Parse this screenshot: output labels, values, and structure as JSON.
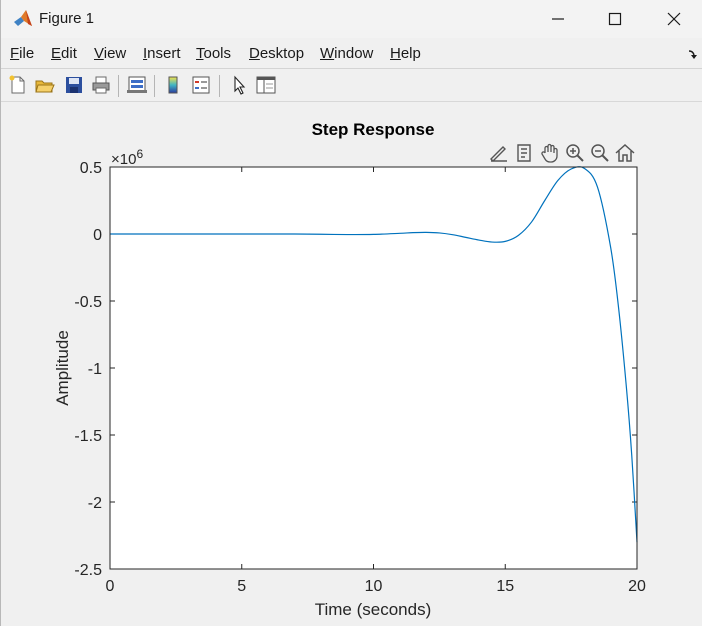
{
  "window": {
    "title": "Figure 1",
    "controls": {
      "minimize_icon": "minimize-icon",
      "maximize_icon": "maximize-icon",
      "close_icon": "close-icon"
    }
  },
  "menu": {
    "items": [
      {
        "label": "File",
        "accel": "F",
        "rest": "ile"
      },
      {
        "label": "Edit",
        "accel": "E",
        "rest": "dit"
      },
      {
        "label": "View",
        "accel": "V",
        "rest": "iew"
      },
      {
        "label": "Insert",
        "accel": "I",
        "rest": "nsert"
      },
      {
        "label": "Tools",
        "accel": "T",
        "rest": "ools"
      },
      {
        "label": "Desktop",
        "accel": "D",
        "rest": "esktop"
      },
      {
        "label": "Window",
        "accel": "W",
        "rest": "indow"
      },
      {
        "label": "Help",
        "accel": "H",
        "rest": "elp"
      }
    ]
  },
  "toolbar": {
    "buttons": [
      "new-figure-icon",
      "open-file-icon",
      "save-icon",
      "print-icon",
      "link-plot-icon",
      "insert-colorbar-icon",
      "insert-legend-icon",
      "edit-plot-icon",
      "property-inspector-icon"
    ]
  },
  "axes_toolbar": {
    "buttons": [
      "brush-icon",
      "data-tips-icon",
      "pan-icon",
      "zoom-in-icon",
      "zoom-out-icon",
      "home-icon"
    ]
  },
  "colors": {
    "line": "#0072bd",
    "axes_bg": "#ffffff",
    "figure_bg": "#f0f0f0",
    "axis": "#262626"
  },
  "chart_data": {
    "type": "line",
    "title": "Step Response",
    "xlabel": "Time (seconds)",
    "ylabel": "Amplitude",
    "exponent_label": "×10",
    "exponent_power": "6",
    "xlim": [
      0,
      20
    ],
    "ylim": [
      -2.5,
      0.5
    ],
    "xticks": [
      0,
      5,
      10,
      15,
      20
    ],
    "xtick_labels": [
      "0",
      "5",
      "10",
      "15",
      "20"
    ],
    "yticks": [
      0.5,
      0,
      -0.5,
      -1,
      -1.5,
      -2,
      -2.5
    ],
    "ytick_labels": [
      "0.5",
      "0",
      "-0.5",
      "-1",
      "-1.5",
      "-2",
      "-2.5"
    ],
    "grid": false,
    "series": [
      {
        "x": [
          0,
          1,
          2,
          3,
          4,
          5,
          6,
          7,
          8,
          9,
          10,
          11,
          11.5,
          12,
          12.5,
          13,
          13.5,
          14,
          14.5,
          15,
          15.5,
          16,
          16.5,
          17,
          17.5,
          18,
          18.5,
          19,
          19.3,
          19.6,
          19.8,
          20
        ],
        "y": [
          0,
          0,
          0,
          0,
          0,
          0,
          0,
          0,
          -0.002,
          -0.004,
          -0.003,
          0.005,
          0.01,
          0.012,
          0.008,
          -0.005,
          -0.025,
          -0.045,
          -0.06,
          -0.055,
          -0.01,
          0.09,
          0.25,
          0.4,
          0.485,
          0.49,
          0.35,
          -0.1,
          -0.55,
          -1.15,
          -1.65,
          -2.3
        ]
      }
    ]
  }
}
